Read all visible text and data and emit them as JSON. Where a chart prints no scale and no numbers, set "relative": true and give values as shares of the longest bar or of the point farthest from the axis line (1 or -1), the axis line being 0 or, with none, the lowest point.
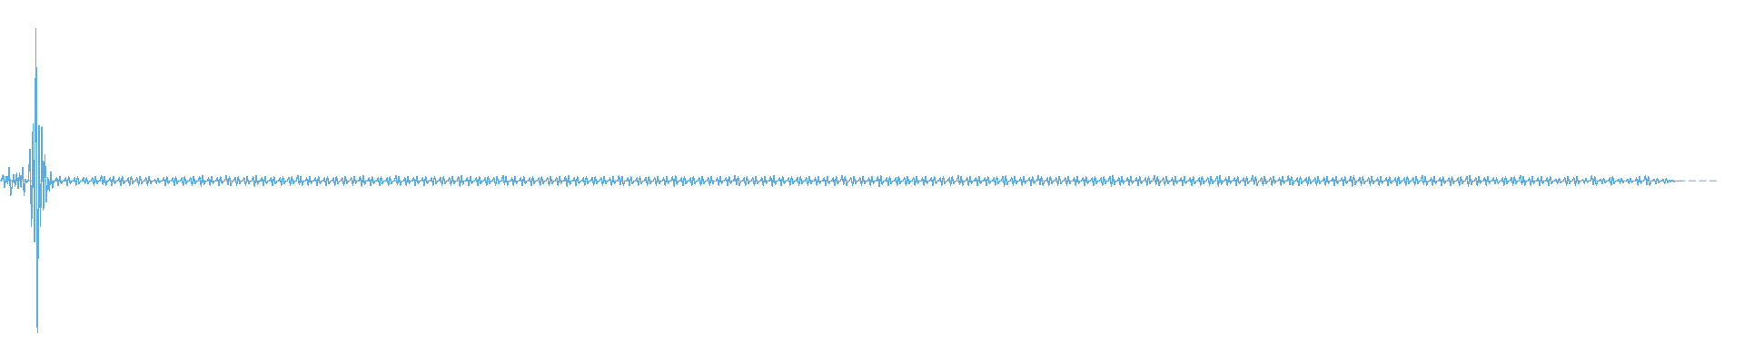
{
  "chart_data": {
    "type": "line",
    "relative": true,
    "color": "#5dade2",
    "ref_lines": [
      {
        "axis": "y",
        "value": 0,
        "line_style": "dashed"
      }
    ],
    "categories": [
      null,
      null,
      null,
      null,
      null,
      null,
      null,
      null,
      null,
      null,
      null,
      null,
      null,
      null,
      null,
      null,
      null,
      null,
      null,
      null,
      null,
      null,
      null,
      null,
      null,
      null,
      null,
      null,
      null,
      null,
      null,
      null,
      null,
      null,
      null,
      null,
      null,
      null,
      null,
      null,
      null,
      null,
      null,
      null,
      null,
      null,
      null,
      null,
      null,
      null,
      null,
      null,
      null,
      null,
      null,
      null,
      null,
      null,
      null,
      null,
      null,
      null,
      null,
      null,
      null,
      null,
      null,
      null,
      null,
      null,
      null,
      null,
      null,
      null,
      null,
      null,
      null,
      null,
      null,
      null,
      null,
      null,
      null,
      null,
      null,
      null,
      null,
      null,
      null,
      null,
      null,
      null,
      null,
      null,
      null,
      null,
      null,
      null,
      null,
      null,
      null,
      null,
      null,
      null,
      null,
      null,
      null,
      null,
      null,
      null,
      null,
      null,
      null,
      null,
      null,
      null,
      null,
      null,
      null,
      null,
      null,
      null,
      null,
      null,
      null,
      null,
      null,
      null,
      null,
      null,
      null,
      null,
      null,
      null,
      null,
      null,
      null,
      null,
      null,
      null,
      null,
      null,
      null,
      null,
      null,
      null,
      null,
      null,
      null,
      null,
      null,
      null,
      null,
      null,
      null,
      null,
      null,
      null,
      null,
      null,
      null,
      null,
      null,
      null,
      null,
      null,
      null,
      null,
      null,
      null,
      null,
      null,
      null,
      null,
      null,
      null,
      null,
      null,
      null,
      null,
      null,
      null,
      null,
      null,
      null,
      null,
      null,
      null,
      null,
      null,
      null,
      null,
      null,
      null,
      null,
      null,
      null,
      null,
      null,
      null,
      null,
      null,
      null,
      null,
      null,
      null,
      null,
      null,
      null,
      null,
      null,
      null,
      null,
      null,
      null,
      null,
      null,
      null,
      null,
      null,
      null,
      null,
      null,
      null,
      null,
      null,
      null,
      null,
      null,
      null,
      null,
      null,
      null,
      null,
      null,
      null,
      null,
      null,
      null,
      null,
      null,
      null,
      null,
      null,
      null,
      null,
      null,
      null,
      null,
      null,
      null,
      null,
      null,
      null,
      null,
      null,
      null,
      null,
      null,
      null,
      null,
      null,
      null,
      null,
      null,
      null,
      null,
      null,
      null,
      null,
      null,
      null,
      null,
      null,
      null,
      null,
      null,
      null,
      null,
      null,
      null,
      null,
      null,
      null,
      null,
      null,
      null,
      null,
      null,
      null,
      null,
      null,
      null,
      null,
      null,
      null,
      null,
      null,
      null,
      null,
      null,
      null,
      null,
      null,
      null,
      null,
      null,
      null,
      null,
      null,
      null,
      null,
      null,
      null,
      null,
      null,
      null,
      null,
      null,
      null,
      null,
      null,
      null,
      null,
      null,
      null,
      null,
      null,
      null,
      null,
      null,
      null,
      null,
      null,
      null,
      null,
      null,
      null,
      null,
      null,
      null,
      null,
      null,
      null,
      null,
      null,
      null,
      null,
      null,
      null,
      null,
      null,
      null,
      null,
      null,
      null,
      null,
      null,
      null,
      null,
      null,
      null,
      null,
      null,
      null,
      null,
      null,
      null,
      null,
      null,
      null,
      null,
      null,
      null,
      null,
      null,
      null,
      null,
      null,
      null,
      null,
      null,
      null,
      null,
      null,
      null,
      null,
      null,
      null,
      null,
      null,
      null,
      null,
      null,
      null,
      null,
      null,
      null,
      null,
      null,
      null,
      null,
      null,
      null,
      null,
      null,
      null,
      null,
      null,
      null,
      null,
      null,
      null,
      null,
      null,
      null,
      null,
      null,
      null,
      null,
      null,
      null,
      null,
      null,
      null,
      null,
      null,
      null,
      null,
      null,
      null,
      null,
      null,
      null,
      null,
      null,
      null,
      null,
      null,
      null,
      null,
      null,
      null,
      null,
      null,
      null,
      null,
      null,
      null,
      null,
      null,
      null,
      null,
      null,
      null,
      null,
      null,
      null,
      null,
      null,
      null,
      null,
      null,
      null,
      null,
      null,
      null,
      null,
      null,
      null,
      null,
      null,
      null,
      null,
      null,
      null,
      null,
      null,
      null,
      null,
      null,
      null,
      null,
      null,
      null,
      null,
      null,
      null,
      null,
      null,
      null,
      null,
      null,
      null,
      null,
      null,
      null,
      null,
      null,
      null,
      null,
      null,
      null,
      null,
      null,
      null,
      null,
      null,
      null,
      null,
      null,
      null,
      null,
      null,
      null,
      null,
      null,
      null,
      null,
      null,
      null,
      null,
      null,
      null,
      null,
      null,
      null,
      null,
      null,
      null,
      null,
      null,
      null,
      null,
      null,
      null,
      null,
      null,
      null,
      null,
      null,
      null,
      null,
      null,
      null,
      null,
      null,
      null,
      null,
      null,
      null,
      null,
      null,
      null,
      null,
      null,
      null,
      null,
      null,
      null,
      null,
      null,
      null,
      null,
      null,
      null,
      null,
      null,
      null,
      null,
      null,
      null,
      null,
      null,
      null,
      null,
      null,
      null,
      null,
      null,
      null,
      null,
      null,
      null,
      null,
      null,
      null,
      null,
      null,
      null,
      null,
      null,
      null,
      null,
      null,
      null,
      null,
      null,
      null,
      null,
      null,
      null,
      null,
      null,
      null,
      null,
      null,
      null,
      null,
      null,
      null,
      null,
      null,
      null,
      null,
      null,
      null,
      null,
      null,
      null,
      null,
      null,
      null,
      null,
      null,
      null,
      null,
      null,
      null,
      null,
      null,
      null,
      null,
      null,
      null,
      null,
      null,
      null,
      null,
      null,
      null,
      null,
      null,
      null,
      null,
      null,
      null,
      null,
      null,
      null,
      null,
      null,
      null,
      null,
      null,
      null,
      null,
      null,
      null,
      null,
      null,
      null,
      null,
      null,
      null,
      null,
      null,
      null,
      null,
      null,
      null,
      null,
      null,
      null,
      null,
      null,
      null,
      null,
      null,
      null,
      null,
      null,
      null,
      null,
      null,
      null,
      null,
      null,
      null,
      null,
      null,
      null,
      null,
      null,
      null,
      null,
      null,
      null,
      null,
      null,
      null,
      null,
      null,
      null,
      null,
      null,
      null,
      null,
      null,
      null,
      null,
      null,
      null,
      null,
      null,
      null,
      null,
      null,
      null,
      null,
      null,
      null,
      null,
      null,
      null,
      null,
      null,
      null,
      null,
      null,
      null,
      null,
      null,
      null,
      null,
      null,
      null,
      null,
      null,
      null,
      null,
      null,
      null,
      null,
      null,
      null,
      null,
      null,
      null,
      null,
      null,
      null,
      null,
      null,
      null,
      null,
      null,
      null,
      null,
      null,
      null,
      null,
      null,
      null,
      null,
      null,
      null,
      null,
      null,
      null,
      null,
      null,
      null,
      null,
      null,
      null,
      null,
      null,
      null,
      null,
      null,
      null,
      null,
      null,
      null,
      null,
      null,
      null,
      null,
      null,
      null,
      null,
      null,
      null,
      null,
      null,
      null,
      null,
      null,
      null,
      null,
      null,
      null,
      null,
      null,
      null,
      null,
      null,
      null,
      null,
      null,
      null,
      null,
      null,
      null,
      null,
      null,
      null,
      null,
      null,
      null,
      null,
      null,
      null,
      null,
      null,
      null,
      null,
      null,
      null,
      null,
      null,
      null,
      null,
      null,
      null,
      null,
      null,
      null,
      null,
      null,
      null,
      null,
      null,
      null,
      null,
      null,
      null,
      null,
      null,
      null,
      null,
      null,
      null,
      null,
      null,
      null,
      null,
      null,
      null,
      null,
      null,
      null,
      null,
      null,
      null,
      null,
      null,
      null,
      null,
      null,
      null,
      null,
      null,
      null,
      null,
      null,
      null,
      null,
      null,
      null,
      null,
      null,
      null,
      null,
      null,
      null,
      null,
      null,
      null,
      null,
      null,
      null,
      null,
      null,
      null,
      null,
      null,
      null,
      null,
      null,
      null,
      null,
      null,
      null,
      null,
      null,
      null,
      null,
      null,
      null,
      null,
      null,
      null,
      null,
      null,
      null,
      null,
      null,
      null,
      null,
      null,
      null,
      null,
      null,
      null,
      null,
      null,
      null,
      null,
      null,
      null,
      null,
      null,
      null,
      null,
      null,
      null,
      null,
      null,
      null,
      null,
      null,
      null,
      null,
      null,
      null,
      null,
      null,
      null,
      null,
      null,
      null,
      null,
      null,
      null,
      null,
      null,
      null,
      null,
      null,
      null,
      null,
      null,
      null,
      null,
      null,
      null,
      null,
      null,
      null,
      null,
      null,
      null,
      null,
      null,
      null,
      null,
      null,
      null,
      null,
      null,
      null,
      null,
      null,
      null,
      null,
      null,
      null,
      null,
      null,
      null,
      null,
      null,
      null,
      null,
      null,
      null,
      null,
      null,
      null,
      null,
      null,
      null,
      null,
      null,
      null,
      null,
      null,
      null,
      null,
      null,
      null,
      null,
      null,
      null,
      null,
      null,
      null,
      null,
      null,
      null,
      null,
      null,
      null,
      null,
      null,
      null,
      null,
      null,
      null,
      null,
      null,
      null,
      null,
      null,
      null,
      null,
      null,
      null,
      null,
      null,
      null,
      null,
      null,
      null,
      null,
      null,
      null,
      null,
      null,
      null,
      null,
      null,
      null,
      null,
      null,
      null,
      null,
      null,
      null,
      null,
      null,
      null,
      null,
      null,
      null,
      null,
      null,
      null,
      null,
      null,
      null,
      null,
      null,
      null,
      null,
      null,
      null,
      null,
      null,
      null,
      null,
      null,
      null,
      null,
      null,
      null,
      null,
      null,
      null,
      null,
      null,
      null,
      null,
      null,
      null,
      null,
      null,
      null,
      null,
      null,
      null,
      null,
      null,
      null,
      null,
      null,
      null,
      null,
      null,
      null,
      null,
      null,
      null,
      null,
      null,
      null,
      null,
      null,
      null,
      null,
      null,
      null,
      null,
      null,
      null,
      null,
      null,
      null,
      null,
      null,
      null,
      null,
      null,
      null,
      null,
      null,
      null,
      null,
      null,
      null,
      null,
      null,
      null,
      null,
      null,
      null,
      null,
      null,
      null,
      null,
      null,
      null,
      null
    ],
    "values": [
      0,
      0.012,
      0.042,
      -0.044,
      0.03,
      -0.02,
      0.09,
      -0.094,
      -0.03,
      0.042,
      -0.035,
      0.05,
      -0.05,
      0.05,
      -0.04,
      0.09,
      -0.094,
      0.01,
      -0.01,
      0.012,
      0.21,
      -0.3,
      0.375,
      -0.4,
      1,
      -1,
      0.365,
      -0.3,
      0.355,
      -0.19,
      0.17,
      -0.14,
      0.02,
      -0.064,
      0.056,
      -0.05,
      0,
      0,
      0.02,
      -0.03,
      0.03,
      -0.02,
      0,
      0,
      0.02,
      -0.03,
      0.03,
      -0.02,
      0,
      0,
      0.02,
      -0.03,
      0.03,
      -0.02,
      0,
      0,
      0.02,
      -0.02,
      0.02,
      -0.02,
      0,
      0,
      0.02,
      -0.03,
      0.03,
      -0.02,
      0,
      0,
      0.036,
      -0.026,
      0.03,
      -0.03,
      0,
      0,
      0.02,
      -0.03,
      0.03,
      -0.02,
      0,
      0,
      0.02,
      -0.03,
      0.03,
      -0.02,
      0,
      0,
      0.02,
      -0.03,
      0.03,
      -0.02,
      0,
      0,
      0.02,
      -0.03,
      0.03,
      -0.02,
      0,
      0,
      0.02,
      -0.03,
      0.03,
      -0.02,
      0,
      0,
      0.012,
      -0.018,
      0.018,
      -0.012,
      0,
      0,
      0.02,
      -0.03,
      0.03,
      -0.02,
      0,
      0,
      0.02,
      -0.03,
      0.03,
      -0.02,
      0,
      0,
      0.02,
      -0.03,
      0.03,
      -0.02,
      0,
      0,
      0.02,
      -0.03,
      0.03,
      -0.02,
      0,
      0,
      0.03,
      -0.035,
      0.035,
      -0.025,
      0,
      0,
      0.02,
      -0.03,
      0.03,
      -0.02,
      0,
      0,
      0.02,
      -0.03,
      0.03,
      -0.02,
      0,
      0,
      0.036,
      -0.026,
      0.03,
      -0.03,
      0,
      0,
      0.02,
      -0.03,
      0.03,
      -0.02,
      0,
      0,
      0.02,
      -0.03,
      0.03,
      -0.02,
      0,
      0,
      0.03,
      -0.035,
      0.035,
      -0.025,
      0,
      0,
      0.02,
      -0.03,
      0.03,
      -0.02,
      0,
      0,
      0.02,
      -0.03,
      0.03,
      -0.02,
      0,
      0,
      0.02,
      -0.03,
      0.03,
      -0.02,
      0,
      0,
      0.02,
      -0.03,
      0.03,
      -0.02,
      0,
      0,
      0.036,
      -0.026,
      0.03,
      -0.03,
      0,
      0,
      0.02,
      -0.03,
      0.03,
      -0.02,
      0,
      0,
      0.02,
      -0.03,
      0.03,
      -0.02,
      0,
      0,
      0.02,
      -0.03,
      0.03,
      -0.02,
      0,
      0,
      0.02,
      -0.03,
      0.03,
      -0.02,
      0,
      0,
      0.02,
      -0.03,
      0.03,
      -0.02,
      0,
      0,
      0.02,
      -0.03,
      0.03,
      -0.02,
      0,
      0,
      0.03,
      -0.035,
      0.035,
      -0.025,
      0,
      0,
      0.02,
      -0.03,
      0.03,
      -0.02,
      0,
      0,
      0.02,
      -0.03,
      0.03,
      -0.02,
      0,
      0,
      0.02,
      -0.03,
      0.03,
      -0.02,
      0,
      0,
      0.036,
      -0.026,
      0.03,
      -0.03,
      0,
      0,
      0.02,
      -0.03,
      0.03,
      -0.02,
      0,
      0,
      0.02,
      -0.03,
      0.03,
      -0.02,
      0,
      0,
      0.02,
      -0.03,
      0.03,
      -0.02,
      0,
      0,
      0.02,
      -0.03,
      0.03,
      -0.02,
      0,
      0,
      0.02,
      -0.03,
      0.03,
      -0.02,
      0,
      0,
      0.02,
      -0.03,
      0.03,
      -0.02,
      0,
      0,
      0.03,
      -0.035,
      0.035,
      -0.025,
      0,
      0,
      0.02,
      -0.03,
      0.03,
      -0.02,
      0,
      0,
      0.02,
      -0.03,
      0.03,
      -0.02,
      0,
      0,
      0.02,
      -0.03,
      0.03,
      -0.02,
      0,
      0,
      0.02,
      -0.03,
      0.03,
      -0.02,
      0,
      0,
      0.036,
      -0.026,
      0.03,
      -0.03,
      0,
      0,
      0.02,
      -0.03,
      0.03,
      -0.02,
      0,
      0,
      0.02,
      -0.03,
      0.03,
      -0.02,
      0,
      0,
      0.02,
      -0.03,
      0.03,
      -0.02,
      0,
      0,
      0.02,
      -0.03,
      0.03,
      -0.02,
      0,
      0,
      0.02,
      -0.03,
      0.03,
      -0.02,
      0,
      0,
      0.02,
      -0.03,
      0.03,
      -0.02,
      0,
      0,
      0.03,
      -0.035,
      0.035,
      -0.025,
      0,
      0,
      0.02,
      -0.03,
      0.03,
      -0.02,
      0,
      0,
      0.02,
      -0.03,
      0.03,
      -0.02,
      0,
      0,
      0.02,
      -0.03,
      0.03,
      -0.02,
      0,
      0,
      0.02,
      -0.03,
      0.03,
      -0.02,
      0,
      0,
      0.02,
      -0.03,
      0.03,
      -0.02,
      0,
      0,
      0.036,
      -0.026,
      0.03,
      -0.03,
      0,
      0,
      0.02,
      -0.03,
      0.03,
      -0.02,
      0,
      0,
      0.02,
      -0.03,
      0.03,
      -0.02,
      0,
      0,
      0.02,
      -0.03,
      0.03,
      -0.02,
      0,
      0,
      0.02,
      -0.03,
      0.03,
      -0.02,
      0,
      0,
      0.02,
      -0.03,
      0.03,
      -0.02,
      0,
      0,
      0.03,
      -0.035,
      0.035,
      -0.025,
      0,
      0,
      0.02,
      -0.03,
      0.03,
      -0.02,
      0,
      0,
      0.02,
      -0.03,
      0.03,
      -0.02,
      0,
      0,
      0.02,
      -0.03,
      0.03,
      -0.02,
      0,
      0,
      0.02,
      -0.03,
      0.03,
      -0.02,
      0,
      0,
      0.02,
      -0.03,
      0.03,
      -0.02,
      0,
      0,
      0.02,
      -0.03,
      0.03,
      -0.02,
      0,
      0,
      0.036,
      -0.026,
      0.03,
      -0.03,
      0,
      0,
      0.02,
      -0.03,
      0.03,
      -0.02,
      0,
      0,
      0.02,
      -0.03,
      0.03,
      -0.02,
      0,
      0,
      0.02,
      -0.03,
      0.03,
      -0.02,
      0,
      0,
      0.03,
      -0.035,
      0.035,
      -0.025,
      0,
      0,
      0.02,
      -0.03,
      0.03,
      -0.02,
      0,
      0,
      0.02,
      -0.03,
      0.03,
      -0.02,
      0,
      0,
      0.02,
      -0.03,
      0.03,
      -0.02,
      0,
      0,
      0.02,
      -0.03,
      0.03,
      -0.02,
      0,
      0,
      0.02,
      -0.03,
      0.03,
      -0.02,
      0,
      0,
      0.02,
      -0.03,
      0.03,
      -0.02,
      0,
      0,
      0.02,
      -0.03,
      0.03,
      -0.02,
      0,
      0,
      0.036,
      -0.026,
      0.03,
      -0.03,
      0,
      0,
      0.02,
      -0.03,
      0.03,
      -0.02,
      0,
      0,
      0.02,
      -0.03,
      0.03,
      -0.02,
      0,
      0,
      0.02,
      -0.03,
      0.03,
      -0.02,
      0,
      0,
      0.03,
      -0.035,
      0.035,
      -0.025,
      0,
      0,
      0.02,
      -0.03,
      0.03,
      -0.02,
      0,
      0,
      0.02,
      -0.03,
      0.03,
      -0.02,
      0,
      0,
      0.02,
      -0.03,
      0.03,
      -0.02,
      0,
      0,
      0.02,
      -0.03,
      0.03,
      -0.02,
      0,
      0,
      0.02,
      -0.03,
      0.03,
      -0.02,
      0,
      0,
      0.02,
      -0.03,
      0.03,
      -0.02,
      0,
      0,
      0.02,
      -0.03,
      0.03,
      -0.02,
      0,
      0,
      0.02,
      -0.03,
      0.03,
      -0.02,
      0,
      0,
      0.036,
      -0.026,
      0.03,
      -0.03,
      0,
      0,
      0.02,
      -0.03,
      0.03,
      -0.02,
      0,
      0,
      0.02,
      -0.03,
      0.03,
      -0.02,
      0,
      0,
      0.02,
      -0.03,
      0.03,
      -0.02,
      0,
      0,
      0.02,
      -0.03,
      0.03,
      -0.02,
      0,
      0,
      0.03,
      -0.035,
      0.035,
      -0.025,
      0,
      0,
      0.02,
      -0.03,
      0.03,
      -0.02,
      0,
      0,
      0.02,
      -0.03,
      0.03,
      -0.02,
      0,
      0,
      0.02,
      -0.03,
      0.03,
      -0.02,
      0,
      0,
      0.036,
      -0.026,
      0.03,
      -0.03,
      0,
      0,
      0.02,
      -0.03,
      0.03,
      -0.02,
      0,
      0,
      0.02,
      -0.03,
      0.03,
      -0.02,
      0,
      0,
      0.02,
      -0.03,
      0.03,
      -0.02,
      0,
      0,
      0.02,
      -0.03,
      0.03,
      -0.02,
      0,
      0,
      0.02,
      -0.03,
      0.03,
      -0.02,
      0,
      0,
      0.02,
      -0.03,
      0.03,
      -0.02,
      0,
      0,
      0.02,
      -0.03,
      0.03,
      -0.02,
      0,
      0,
      0.03,
      -0.035,
      0.035,
      -0.025,
      0,
      0,
      0.02,
      -0.03,
      0.03,
      -0.02,
      0,
      0,
      0.02,
      -0.03,
      0.03,
      -0.02,
      0,
      0,
      0.02,
      -0.03,
      0.03,
      -0.02,
      0,
      0,
      0.02,
      -0.03,
      0.03,
      -0.02,
      0,
      0,
      0.036,
      -0.026,
      0.03,
      -0.03,
      0,
      0,
      0.02,
      -0.03,
      0.03,
      -0.02,
      0,
      0,
      0.02,
      -0.03,
      0.03,
      -0.02,
      0,
      0,
      0.02,
      -0.03,
      0.03,
      -0.02,
      0,
      0,
      0.02,
      -0.03,
      0.03,
      -0.02,
      0,
      0,
      0.02,
      -0.03,
      0.03,
      -0.02,
      0,
      0,
      0.02,
      -0.03,
      0.03,
      -0.02,
      0,
      0,
      0.03,
      -0.035,
      0.035,
      -0.025,
      0,
      0,
      0.02,
      -0.03,
      0.03,
      -0.02,
      0,
      0,
      0.02,
      -0.03,
      0.03,
      -0.02,
      0,
      0,
      0.02,
      -0.03,
      0.03,
      -0.02,
      0,
      0,
      0.036,
      -0.026,
      0.03,
      -0.03,
      0,
      0,
      0.02,
      -0.03,
      0.03,
      -0.02,
      0,
      0,
      0.02,
      -0.03,
      0.03,
      -0.02,
      0,
      0,
      0.02,
      -0.03,
      0.03,
      -0.02,
      0,
      0,
      0.036,
      -0.026,
      0.03,
      -0.03,
      0,
      0,
      0.02,
      -0.03,
      0.03,
      -0.02,
      0,
      0,
      0.02,
      -0.03,
      0.03,
      -0.02,
      0,
      0,
      0.02,
      -0.03,
      0.03,
      -0.02,
      0,
      0,
      0.02,
      -0.03,
      0.03,
      -0.02,
      0,
      0,
      0.02,
      -0.03,
      0.03,
      -0.02,
      0,
      0,
      0.02,
      -0.03,
      0.03,
      -0.02,
      0,
      0,
      0.03,
      -0.035,
      0.035,
      -0.025,
      0,
      0,
      0.02,
      -0.03,
      0.03,
      -0.02,
      0,
      0,
      0.02,
      -0.03,
      0.03,
      -0.02,
      0,
      0,
      0.02,
      -0.03,
      0.03,
      -0.02,
      0,
      0,
      0.02,
      -0.03,
      0.03,
      -0.02,
      0,
      0,
      0.02,
      -0.03,
      0.03,
      -0.02,
      0,
      0,
      0.02,
      -0.03,
      0.03,
      -0.02,
      0,
      0,
      0.02,
      -0.03,
      0.03,
      -0.02,
      0,
      0,
      0.036,
      -0.026,
      0.03,
      -0.03,
      0,
      0,
      0.02,
      -0.03,
      0.03,
      -0.02,
      0,
      0,
      0.02,
      -0.03,
      0.03,
      -0.02,
      0,
      0,
      0.02,
      -0.03,
      0.03,
      -0.02,
      0,
      0,
      0.02,
      -0.03,
      0.03,
      -0.02,
      0,
      0,
      0.03,
      -0.035,
      0.035,
      -0.025,
      0,
      0,
      0.02,
      -0.03,
      0.03,
      -0.02,
      0,
      0,
      0.02,
      -0.03,
      0.03,
      -0.02,
      0,
      0,
      0.02,
      -0.02,
      0.02,
      -0.02,
      0,
      0,
      0.02,
      -0.03,
      0.03,
      -0.02,
      0,
      0,
      0.02,
      -0.03,
      0.03,
      -0.02,
      0,
      0,
      0.036,
      -0.026,
      0.03,
      -0.03,
      0,
      0,
      0.02,
      -0.03,
      0.03,
      -0.02,
      0,
      0,
      0.02,
      -0.03,
      0.03,
      -0.02,
      0,
      0,
      0.02,
      -0.03,
      0.03,
      -0.02,
      0,
      0,
      0.012,
      -0.018,
      0.018,
      -0.012,
      0,
      0,
      0.02,
      -0.03,
      0.03,
      -0.02,
      0,
      0,
      0.02,
      -0.03,
      0.03,
      -0.02,
      0,
      0,
      0.012,
      -0.018,
      0.018,
      -0.012,
      0,
      0,
      0.036,
      -0.026,
      0.03,
      -0.03,
      0,
      0,
      0.012,
      -0.018,
      0.018,
      -0.012,
      0,
      0,
      0.02,
      -0.03,
      0.03,
      -0.02,
      0,
      0,
      0.012,
      -0.018,
      0.018,
      -0.012,
      0,
      0,
      0.012,
      -0.018,
      0.018,
      -0.012,
      0,
      0,
      0.02,
      -0.03,
      0.03,
      -0.02,
      0,
      0,
      0.036,
      -0.026,
      0.03,
      -0.03,
      0,
      0,
      0.012,
      -0.018,
      0.018,
      -0.012,
      0,
      0,
      0.012,
      -0.018,
      0.018,
      -0.012,
      0.006,
      -0.006,
      0.006,
      -0.006,
      0,
      0,
      0,
      0,
      0,
      0,
      null,
      null,
      null,
      null,
      null,
      null,
      null,
      null,
      null,
      null,
      null,
      null,
      null,
      null,
      null,
      null,
      null,
      null,
      null,
      null,
      null,
      null,
      null
    ]
  }
}
